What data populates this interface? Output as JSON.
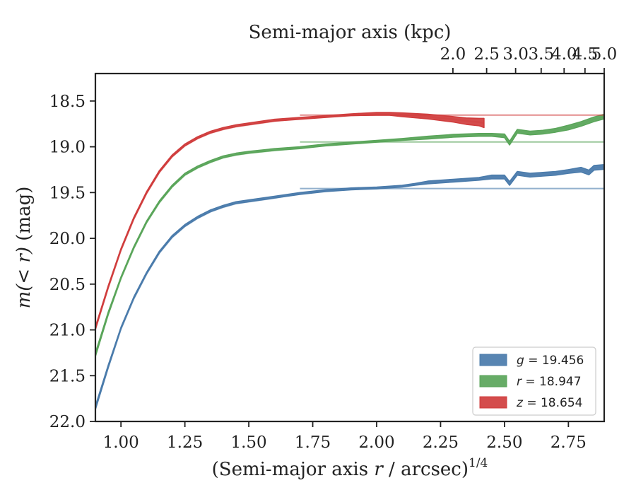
{
  "chart_data": {
    "type": "area",
    "title": "",
    "xlabel": "(Semi-major axis r / arcsec)^1/4",
    "xlabel_main": "(Semi-major axis ",
    "xlabel_var": "r",
    "xlabel_unit": " / arcsec)",
    "xlabel_sup": "1/4",
    "x2label": "Semi-major axis (kpc)",
    "ylabel": "m(<r) (mag)",
    "ylabel_var": "m(< r)",
    "ylabel_unit": " (mag)",
    "xlim": [
      0.9,
      2.89
    ],
    "ylim": [
      22.0,
      18.2
    ],
    "y_inverted": true,
    "xticks": [
      "1.00",
      "1.25",
      "1.50",
      "1.75",
      "2.00",
      "2.25",
      "2.50",
      "2.75"
    ],
    "xtick_values": [
      1.0,
      1.25,
      1.5,
      1.75,
      2.0,
      2.25,
      2.5,
      2.75
    ],
    "yticks": [
      "18.5",
      "19.0",
      "19.5",
      "20.0",
      "20.5",
      "21.0",
      "21.5",
      "22.0"
    ],
    "ytick_values": [
      18.5,
      19.0,
      19.5,
      20.0,
      20.5,
      21.0,
      21.5,
      22.0
    ],
    "x2ticks": [
      "2.0",
      "2.5",
      "3.0",
      "3.5",
      "4.0",
      "4.5",
      "5.0"
    ],
    "x2tick_values": [
      2.0,
      2.5,
      3.0,
      3.5,
      4.0,
      4.5,
      5.0
    ],
    "x2_scale": "x^4 * 0.0099 kpc",
    "legend_position": "lower-right",
    "grid": false,
    "series": [
      {
        "name": "g = 19.456",
        "legend_var": "g",
        "legend_value": "= 19.456",
        "color": "#4a7bab",
        "asymptote": 19.456,
        "x": [
          0.9,
          0.95,
          1.0,
          1.05,
          1.1,
          1.15,
          1.2,
          1.25,
          1.3,
          1.35,
          1.4,
          1.45,
          1.5,
          1.6,
          1.7,
          1.8,
          1.9,
          2.0,
          2.1,
          2.15,
          2.2,
          2.3,
          2.4,
          2.45,
          2.5,
          2.52,
          2.55,
          2.6,
          2.65,
          2.7,
          2.75,
          2.8,
          2.83,
          2.85,
          2.89
        ],
        "y": [
          21.85,
          21.4,
          20.98,
          20.65,
          20.38,
          20.15,
          19.98,
          19.86,
          19.77,
          19.7,
          19.65,
          19.61,
          19.59,
          19.55,
          19.51,
          19.48,
          19.46,
          19.45,
          19.43,
          19.41,
          19.39,
          19.37,
          19.35,
          19.33,
          19.33,
          19.4,
          19.29,
          19.31,
          19.3,
          19.29,
          19.27,
          19.25,
          19.28,
          19.23,
          19.22
        ],
        "width": [
          0.04,
          0.03,
          0.02,
          0.02,
          0.02,
          0.02,
          0.02,
          0.02,
          0.02,
          0.02,
          0.02,
          0.02,
          0.02,
          0.02,
          0.02,
          0.02,
          0.02,
          0.02,
          0.02,
          0.02,
          0.03,
          0.03,
          0.03,
          0.04,
          0.04,
          0.04,
          0.04,
          0.04,
          0.04,
          0.04,
          0.04,
          0.05,
          0.05,
          0.05,
          0.05
        ]
      },
      {
        "name": "r = 18.947",
        "legend_var": "r",
        "legend_value": "= 18.947",
        "color": "#5aa55a",
        "asymptote": 18.947,
        "x": [
          0.9,
          0.95,
          1.0,
          1.05,
          1.1,
          1.15,
          1.2,
          1.25,
          1.3,
          1.35,
          1.4,
          1.45,
          1.5,
          1.6,
          1.7,
          1.8,
          1.9,
          2.0,
          2.1,
          2.2,
          2.3,
          2.4,
          2.45,
          2.5,
          2.52,
          2.55,
          2.6,
          2.65,
          2.7,
          2.75,
          2.8,
          2.85,
          2.89
        ],
        "y": [
          21.27,
          20.82,
          20.43,
          20.1,
          19.82,
          19.6,
          19.43,
          19.3,
          19.22,
          19.16,
          19.11,
          19.08,
          19.06,
          19.03,
          19.01,
          18.98,
          18.96,
          18.94,
          18.92,
          18.9,
          18.88,
          18.87,
          18.87,
          18.88,
          18.96,
          18.83,
          18.85,
          18.84,
          18.82,
          18.79,
          18.75,
          18.7,
          18.67
        ],
        "width": [
          0.04,
          0.03,
          0.02,
          0.02,
          0.02,
          0.02,
          0.02,
          0.02,
          0.02,
          0.02,
          0.02,
          0.02,
          0.02,
          0.02,
          0.02,
          0.02,
          0.02,
          0.02,
          0.02,
          0.03,
          0.03,
          0.03,
          0.03,
          0.04,
          0.04,
          0.04,
          0.04,
          0.04,
          0.04,
          0.05,
          0.05,
          0.05,
          0.05
        ]
      },
      {
        "name": "z = 18.654",
        "legend_var": "z",
        "legend_value": "= 18.654",
        "color": "#d03d3d",
        "asymptote": 18.654,
        "x": [
          0.9,
          0.95,
          1.0,
          1.05,
          1.1,
          1.15,
          1.2,
          1.25,
          1.3,
          1.35,
          1.4,
          1.45,
          1.5,
          1.6,
          1.7,
          1.8,
          1.9,
          2.0,
          2.05,
          2.1,
          2.2,
          2.3,
          2.35,
          2.4,
          2.42
        ],
        "y": [
          20.98,
          20.53,
          20.12,
          19.78,
          19.5,
          19.27,
          19.1,
          18.98,
          18.9,
          18.84,
          18.8,
          18.77,
          18.75,
          18.71,
          18.69,
          18.67,
          18.65,
          18.64,
          18.64,
          18.65,
          18.67,
          18.7,
          18.72,
          18.73,
          18.74
        ],
        "width": [
          0.03,
          0.025,
          0.02,
          0.02,
          0.02,
          0.02,
          0.02,
          0.02,
          0.02,
          0.02,
          0.02,
          0.02,
          0.02,
          0.02,
          0.02,
          0.02,
          0.02,
          0.03,
          0.03,
          0.04,
          0.05,
          0.06,
          0.07,
          0.08,
          0.1
        ]
      }
    ]
  }
}
